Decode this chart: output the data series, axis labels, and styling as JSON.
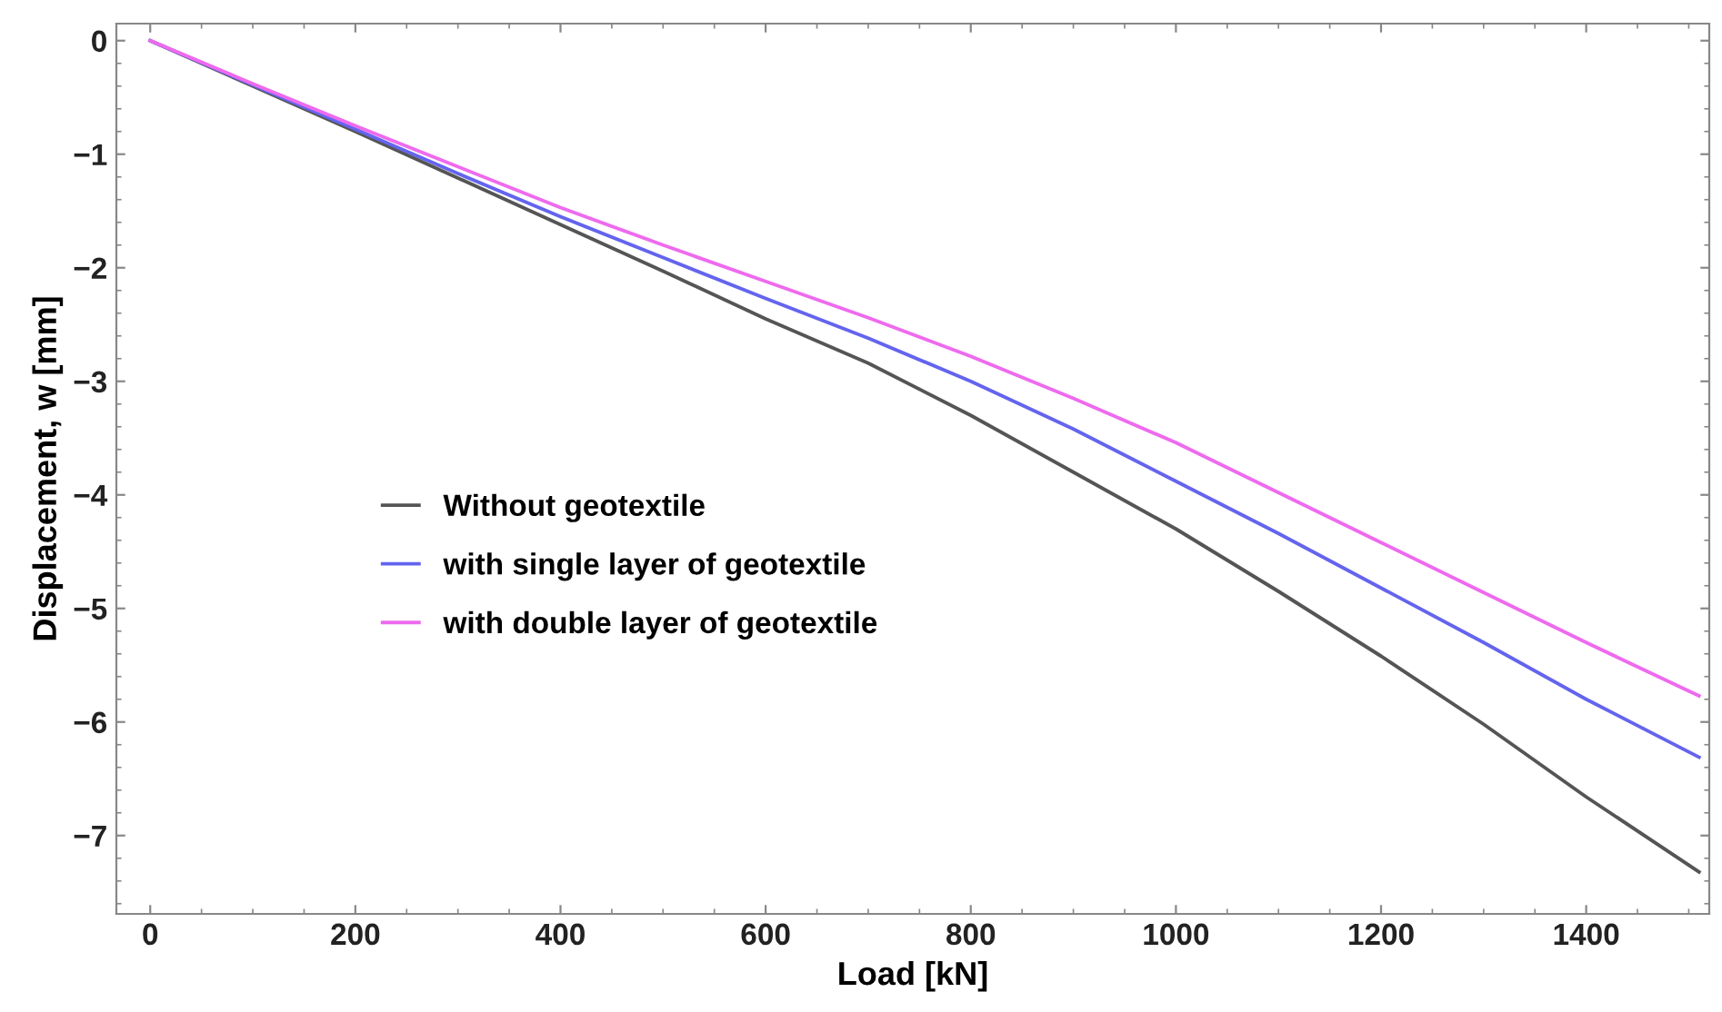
{
  "chart_data": {
    "type": "line",
    "xlabel": "Load [kN]",
    "ylabel": "Displacement, w [mm]",
    "x": [
      0,
      100,
      200,
      300,
      400,
      500,
      600,
      700,
      800,
      900,
      1000,
      1100,
      1200,
      1300,
      1400,
      1510
    ],
    "series": [
      {
        "name": "Without geotextile",
        "color": "#555555",
        "values": [
          0,
          -0.4,
          -0.8,
          -1.21,
          -1.62,
          -2.03,
          -2.45,
          -2.84,
          -3.3,
          -3.8,
          -4.3,
          -4.85,
          -5.42,
          -6.02,
          -6.66,
          -7.32
        ]
      },
      {
        "name": "with single layer of geotextile",
        "color": "#6464ee",
        "values": [
          0,
          -0.39,
          -0.78,
          -1.17,
          -1.55,
          -1.91,
          -2.27,
          -2.62,
          -3.0,
          -3.42,
          -3.88,
          -4.34,
          -4.82,
          -5.3,
          -5.8,
          -6.31
        ]
      },
      {
        "name": "with double layer of geotextile",
        "color": "#ee6aee",
        "values": [
          0,
          -0.38,
          -0.75,
          -1.11,
          -1.47,
          -1.8,
          -2.12,
          -2.44,
          -2.78,
          -3.15,
          -3.54,
          -3.98,
          -4.42,
          -4.86,
          -5.3,
          -5.77
        ]
      }
    ],
    "xlim": [
      -33,
      1520
    ],
    "ylim": [
      -7.69,
      0.15
    ],
    "xticks": [
      0,
      200,
      400,
      600,
      800,
      1000,
      1200,
      1400
    ],
    "yticks": [
      {
        "value": -7,
        "label": "−7"
      },
      {
        "value": -6,
        "label": "−6"
      },
      {
        "value": -5,
        "label": "−5"
      },
      {
        "value": -4,
        "label": "−4"
      },
      {
        "value": -3,
        "label": "−3"
      },
      {
        "value": -2,
        "label": "−2"
      },
      {
        "value": -1,
        "label": "−1"
      },
      0
    ],
    "legend": "center left",
    "grid": false
  }
}
